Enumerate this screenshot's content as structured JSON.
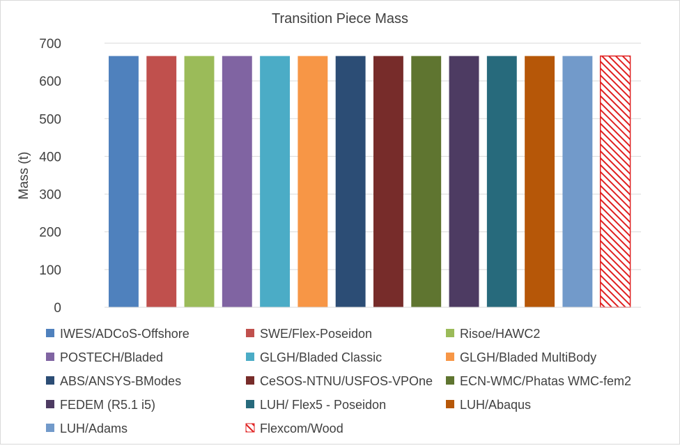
{
  "chart_data": {
    "type": "bar",
    "title": "Transition Piece Mass",
    "xlabel": "",
    "ylabel": "Mass (t)",
    "ylim": [
      0,
      700
    ],
    "yticks": [
      0,
      100,
      200,
      300,
      400,
      500,
      600,
      700
    ],
    "grid": true,
    "legend_position": "bottom",
    "series": [
      {
        "name": "IWES/ADCoS-Offshore",
        "value": 666,
        "color": "#4f81bd",
        "pattern": "solid"
      },
      {
        "name": "SWE/Flex-Poseidon",
        "value": 666,
        "color": "#c0504d",
        "pattern": "solid"
      },
      {
        "name": "Risoe/HAWC2",
        "value": 666,
        "color": "#9bbb59",
        "pattern": "solid"
      },
      {
        "name": "POSTECH/Bladed",
        "value": 666,
        "color": "#8064a2",
        "pattern": "solid"
      },
      {
        "name": "GLGH/Bladed Classic",
        "value": 666,
        "color": "#4bacc6",
        "pattern": "solid"
      },
      {
        "name": "GLGH/Bladed MultiBody",
        "value": 666,
        "color": "#f79646",
        "pattern": "solid"
      },
      {
        "name": "ABS/ANSYS-BModes",
        "value": 666,
        "color": "#2c4d75",
        "pattern": "solid"
      },
      {
        "name": "CeSOS-NTNU/USFOS-VPOne",
        "value": 666,
        "color": "#772c2a",
        "pattern": "solid"
      },
      {
        "name": "ECN-WMC/Phatas WMC-fem2",
        "value": 666,
        "color": "#5f7530",
        "pattern": "solid"
      },
      {
        "name": "FEDEM (R5.1 i5)",
        "value": 666,
        "color": "#4d3b62",
        "pattern": "solid"
      },
      {
        "name": "LUH/ Flex5 - Poseidon",
        "value": 666,
        "color": "#276a7c",
        "pattern": "solid"
      },
      {
        "name": "LUH/Abaqus",
        "value": 666,
        "color": "#b65708",
        "pattern": "solid"
      },
      {
        "name": "LUH/Adams",
        "value": 666,
        "color": "#729aca",
        "pattern": "solid"
      },
      {
        "name": "Flexcom/Wood",
        "value": 666,
        "color": "#e02020",
        "pattern": "hatch"
      }
    ]
  }
}
